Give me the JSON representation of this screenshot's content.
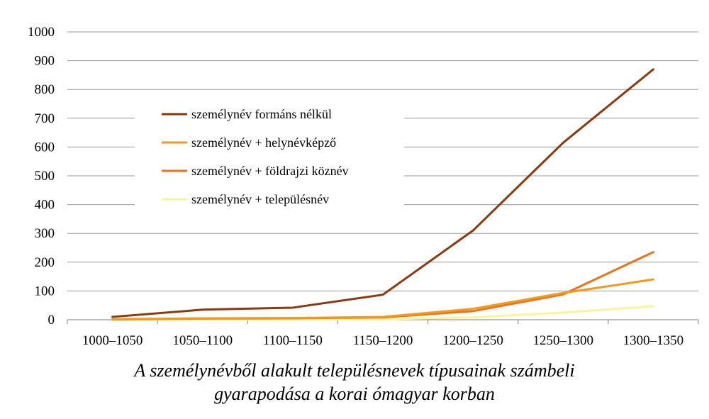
{
  "chart_data": {
    "type": "line",
    "categories": [
      "1000–1050",
      "1050–1100",
      "1100–1150",
      "1150–1200",
      "1200–1250",
      "1250–1300",
      "1300–1350"
    ],
    "ylim": [
      0,
      1000
    ],
    "yticks": [
      0,
      100,
      200,
      300,
      400,
      500,
      600,
      700,
      800,
      900,
      1000
    ],
    "grid": true,
    "legend_position": "upper-left-inside",
    "series": [
      {
        "name": "személynév formáns nélkül",
        "color": "#8B3A0F",
        "values": [
          10,
          35,
          42,
          87,
          310,
          615,
          870
        ]
      },
      {
        "name": "személynév + helynévképző",
        "color": "#F29A1F",
        "values": [
          2,
          5,
          6,
          10,
          38,
          93,
          140
        ]
      },
      {
        "name": "személynév + földrajzi köznév",
        "color": "#E8741E",
        "values": [
          1,
          4,
          5,
          8,
          30,
          88,
          235
        ]
      },
      {
        "name": "személynév + településnév",
        "color": "#FBF59A",
        "values": [
          0,
          1,
          1,
          2,
          8,
          25,
          47
        ]
      }
    ]
  },
  "caption": {
    "line1": "A személynévből alakult településnevek típusainak számbeli",
    "line2": "gyarapodása a korai ómagyar korban"
  }
}
